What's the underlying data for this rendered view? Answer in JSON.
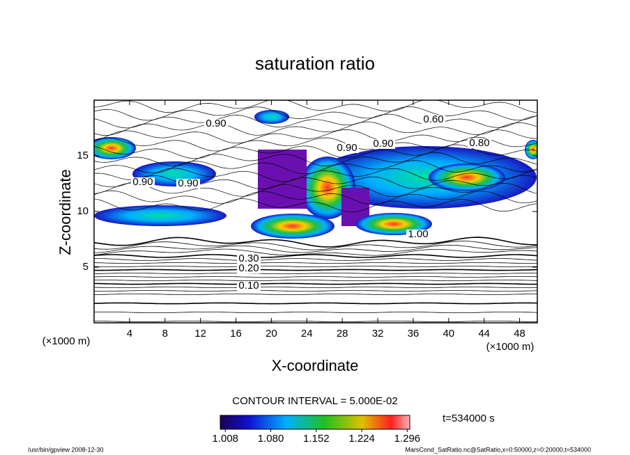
{
  "chart_data": {
    "type": "contour",
    "title": "saturation ratio",
    "x_label": "X-coordinate",
    "y_label": "Z-coordinate",
    "x_unit": "(×1000 m)",
    "y_unit": "(×1000 m)",
    "xlim": [
      0,
      50
    ],
    "xticks": [
      4,
      8,
      12,
      16,
      20,
      24,
      28,
      32,
      36,
      40,
      44,
      48
    ],
    "ylim": [
      0,
      20
    ],
    "yticks": [
      5,
      10,
      15
    ],
    "contour_labels": [
      "0.10",
      "0.20",
      "0.30",
      "0.90",
      "0.90",
      "0.90",
      "0.90",
      "0.90",
      "0.60",
      "0.80",
      "1.00"
    ],
    "contour_interval": "CONTOUR INTERVAL = 5.000E-02",
    "colorbar": {
      "clim": [
        1.0,
        1.3
      ],
      "ticks": [
        1.008,
        {
          "value": 1.08,
          "label": "1.080"
        },
        1.152,
        1.224,
        1.296
      ]
    },
    "time_label": "t=534000 s",
    "footer_left": "/usr/bin/gpview   2008-12-30",
    "footer_right": "MarsCond_SatRatio.nc@SatRatio,x=0:50000,z=0:20000,t=534000"
  }
}
